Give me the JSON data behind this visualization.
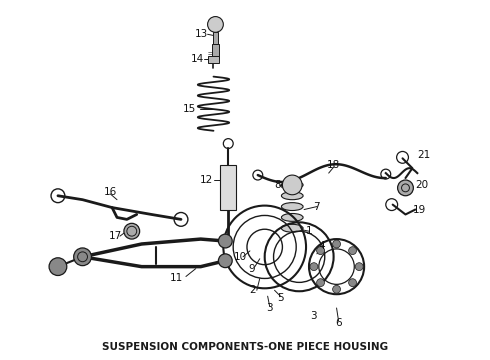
{
  "title": "SUSPENSION COMPONENTS-ONE PIECE HOUSING",
  "title_fontsize": 7.5,
  "title_fontweight": "bold",
  "bg_color": "#ffffff",
  "line_color": "#1a1a1a",
  "label_color": "#111111",
  "label_fontsize": 7.5,
  "fig_width": 4.9,
  "fig_height": 3.6,
  "dpi": 100
}
